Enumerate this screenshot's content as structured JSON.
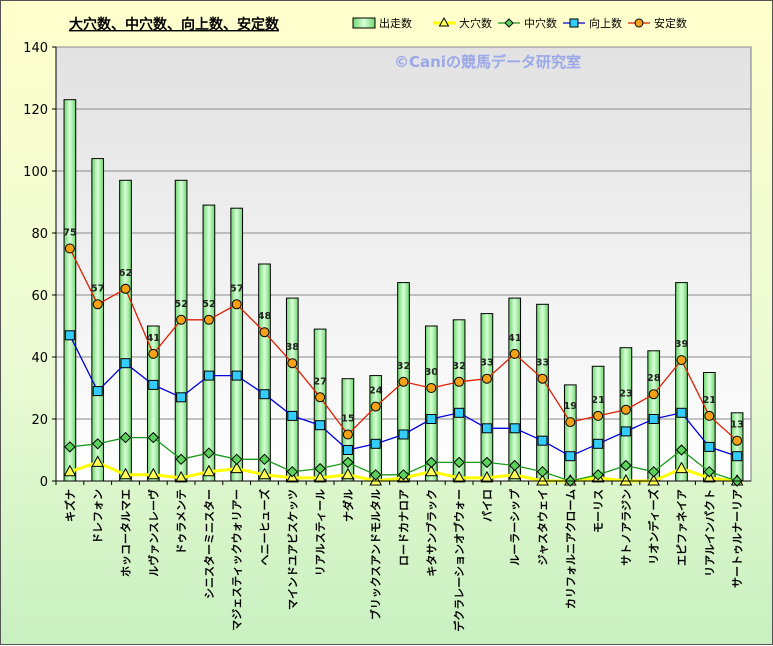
{
  "chart_data": {
    "type": "bar",
    "title": "大穴数、中穴数、向上数、安定数",
    "watermark": "©Caniの競馬データ研究室",
    "ylim": [
      0,
      140
    ],
    "yticks": [
      0,
      20,
      40,
      60,
      80,
      100,
      120,
      140
    ],
    "grid": true,
    "legend_position": "top-right",
    "categories": [
      "キズナ",
      "ドレフォン",
      "ホッコータルマエ",
      "ルヴァンスレーヴ",
      "ドゥラメンテ",
      "シニスターミニスター",
      "マジェスティックウォリアー",
      "ヘニーヒューズ",
      "マインドユアビスケッツ",
      "リアルスティール",
      "ナダル",
      "ブリックスアンドモルタル",
      "ロードカナロア",
      "キタサンブラック",
      "デクラレーションオブウォー",
      "パイロ",
      "ルーラーシップ",
      "ジャスタウェイ",
      "カリフォルニアクローム",
      "モーリス",
      "サトノアラジン",
      "リオンディーズ",
      "エピファネイア",
      "リアルインパクト",
      "サートゥルナーリア"
    ],
    "series": [
      {
        "name": "出走数",
        "kind": "bar",
        "color": "#9be89b",
        "values": [
          123,
          104,
          97,
          50,
          97,
          89,
          88,
          70,
          59,
          49,
          33,
          34,
          64,
          50,
          52,
          54,
          59,
          57,
          31,
          37,
          43,
          42,
          64,
          35,
          22
        ]
      },
      {
        "name": "大穴数",
        "kind": "line",
        "marker": "triangle",
        "color": "#ffff00",
        "values": [
          3,
          6,
          2,
          2,
          1,
          3,
          4,
          2,
          1,
          1,
          2,
          0,
          1,
          3,
          1,
          1,
          2,
          0,
          0,
          1,
          0,
          0,
          4,
          1,
          0
        ]
      },
      {
        "name": "中穴数",
        "kind": "line",
        "marker": "diamond",
        "color": "#1a9a1a",
        "values": [
          11,
          12,
          14,
          14,
          7,
          9,
          7,
          7,
          3,
          4,
          6,
          2,
          2,
          6,
          6,
          6,
          5,
          3,
          0,
          2,
          5,
          3,
          10,
          3,
          0
        ]
      },
      {
        "name": "向上数",
        "kind": "line",
        "marker": "square",
        "color": "#0000dd",
        "values": [
          47,
          29,
          38,
          31,
          27,
          34,
          34,
          28,
          21,
          18,
          10,
          12,
          15,
          20,
          22,
          17,
          17,
          13,
          8,
          12,
          16,
          20,
          22,
          11,
          8
        ]
      },
      {
        "name": "安定数",
        "kind": "line",
        "marker": "circle",
        "color": "#e02000",
        "show_labels": true,
        "values": [
          75,
          57,
          62,
          41,
          52,
          52,
          57,
          48,
          38,
          27,
          15,
          24,
          32,
          30,
          32,
          33,
          41,
          33,
          19,
          21,
          23,
          28,
          39,
          21,
          13
        ]
      }
    ]
  }
}
